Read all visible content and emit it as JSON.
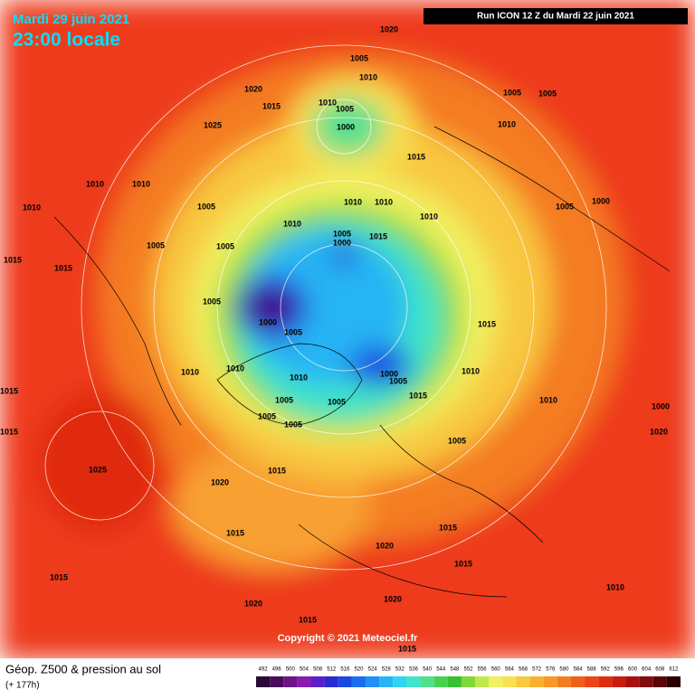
{
  "header": {
    "date": "Mardi 29 juin 2021",
    "time": "23:00 locale",
    "run": "Run ICON 12 Z du Mardi 22 juin 2021"
  },
  "footer": {
    "title": "Géop. Z500 & pression au sol",
    "lead": "(+ 177h)",
    "copyright": "Copyright © 2021 Meteociel.fr"
  },
  "pressure_labels": [
    1020,
    1005,
    1010,
    1020,
    1015,
    1010,
    1005,
    1000,
    1025,
    1005,
    1005,
    1010,
    1015,
    1010,
    1010,
    1010,
    1005,
    1010,
    1010,
    1010,
    1000,
    1005,
    1005,
    1000,
    1015,
    1010,
    1005,
    1015,
    1015,
    1005,
    1005,
    1000,
    1005,
    1015,
    1010,
    1010,
    1010,
    1000,
    1005,
    1010,
    1015,
    1005,
    1005,
    1005,
    1005,
    1010,
    1015,
    1015,
    1025,
    1015,
    1020,
    1005,
    1015,
    1015,
    1020,
    1015,
    1020,
    1015,
    1020,
    1010,
    1015,
    1015,
    1020,
    1000
  ],
  "scale": {
    "values": [
      492,
      496,
      500,
      504,
      508,
      512,
      516,
      520,
      524,
      528,
      532,
      536,
      540,
      544,
      548,
      552,
      556,
      560,
      564,
      568,
      572,
      576,
      580,
      584,
      588,
      592,
      596,
      600,
      604,
      608,
      612
    ],
    "colors": [
      "#2a0838",
      "#4a0c5c",
      "#6c1488",
      "#8a1cae",
      "#5a20c8",
      "#2a2ad0",
      "#1a48e0",
      "#1c6cf0",
      "#2090f4",
      "#28b4f4",
      "#30d4f0",
      "#40e4c8",
      "#50e090",
      "#48d050",
      "#38c030",
      "#80d838",
      "#c0e848",
      "#f0f060",
      "#f8e050",
      "#f8c840",
      "#f8b030",
      "#f89828",
      "#f47c20",
      "#f06018",
      "#ec4414",
      "#e02c10",
      "#c81c10",
      "#a81010",
      "#840c0c",
      "#5a0606",
      "#2a0000"
    ]
  }
}
